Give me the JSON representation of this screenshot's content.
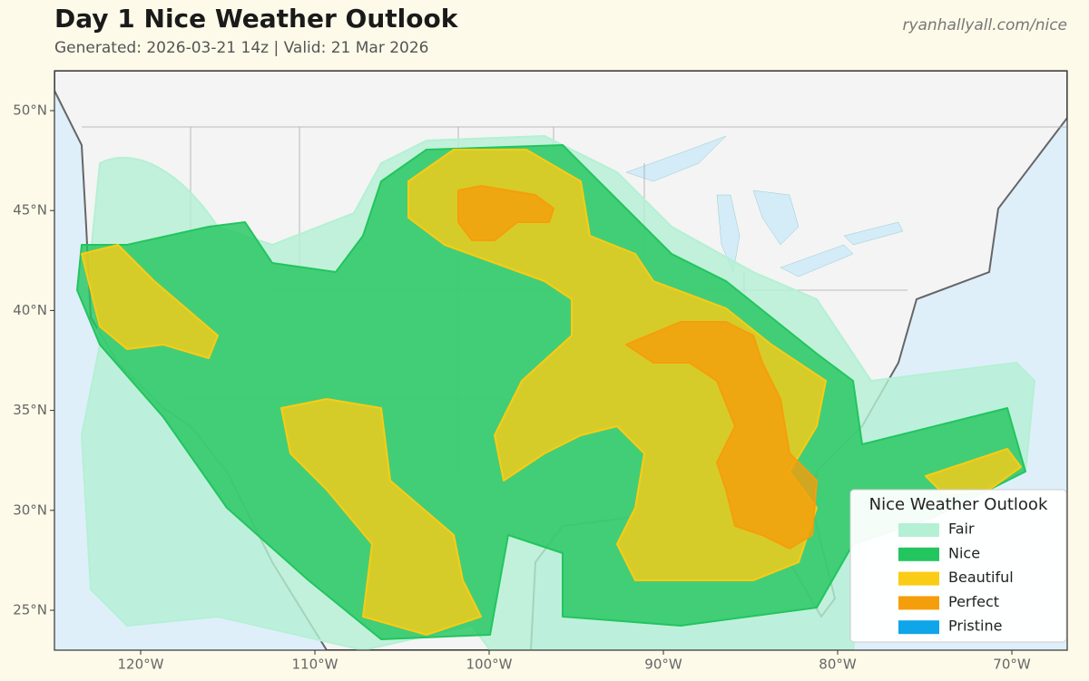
{
  "header": {
    "title": "Day 1 Nice Weather Outlook",
    "subtitle": "Generated: 2026-03-21 14z | Valid: 21 Mar 2026",
    "source": "ryanhallyall.com/nice"
  },
  "map": {
    "lat_ticks": [
      {
        "value": 50,
        "label": "50°N"
      },
      {
        "value": 45,
        "label": "45°N"
      },
      {
        "value": 40,
        "label": "40°N"
      },
      {
        "value": 35,
        "label": "35°N"
      },
      {
        "value": 30,
        "label": "30°N"
      },
      {
        "value": 25,
        "label": "25°N"
      }
    ],
    "lon_ticks": [
      {
        "value": -120,
        "label": "120°W"
      },
      {
        "value": -110,
        "label": "110°W"
      },
      {
        "value": -100,
        "label": "100°W"
      },
      {
        "value": -90,
        "label": "90°W"
      },
      {
        "value": -80,
        "label": "80°W"
      },
      {
        "value": -70,
        "label": "70°W"
      }
    ]
  },
  "legend": {
    "title": "Nice Weather Outlook",
    "items": [
      {
        "label": "Fair",
        "color": "#b4f0d4"
      },
      {
        "label": "Nice",
        "color": "#22c55e"
      },
      {
        "label": "Beautiful",
        "color": "#facc15"
      },
      {
        "label": "Perfect",
        "color": "#f59e0b"
      },
      {
        "label": "Pristine",
        "color": "#0ea5e9"
      }
    ]
  }
}
